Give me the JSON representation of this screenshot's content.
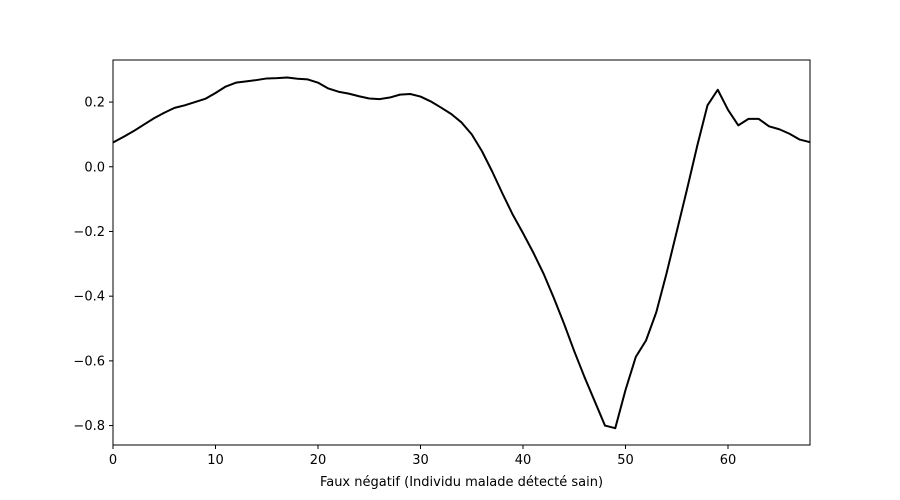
{
  "chart_data": {
    "type": "line",
    "title": "",
    "xlabel": "Faux négatif (Individu malade détecté sain)",
    "ylabel": "",
    "xlim": [
      0,
      68
    ],
    "ylim": [
      -0.86,
      0.33
    ],
    "xticks": [
      0,
      10,
      20,
      30,
      40,
      50,
      60
    ],
    "xtick_labels": [
      "0",
      "10",
      "20",
      "30",
      "40",
      "50",
      "60"
    ],
    "yticks": [
      0.2,
      0.0,
      -0.2,
      -0.4,
      -0.6,
      -0.8
    ],
    "ytick_labels": [
      "0.2",
      "0.0",
      "−0.2",
      "−0.4",
      "−0.6",
      "−0.8"
    ],
    "grid": false,
    "line_color": "#000000",
    "series": [
      {
        "x": [
          0,
          1,
          2,
          3,
          4,
          5,
          6,
          7,
          8,
          9,
          10,
          11,
          12,
          13,
          14,
          15,
          16,
          17,
          18,
          19,
          20,
          21,
          22,
          23,
          24,
          25,
          26,
          27,
          28,
          29,
          30,
          31,
          32,
          33,
          34,
          35,
          36,
          37,
          38,
          39,
          40,
          41,
          42,
          43,
          44,
          45,
          46,
          47,
          48,
          49,
          50,
          51,
          52,
          53,
          54,
          55,
          56,
          57,
          58,
          59,
          60,
          61,
          62,
          63,
          64,
          65,
          66,
          67,
          68
        ],
        "values": [
          0.075,
          0.092,
          0.11,
          0.13,
          0.15,
          0.167,
          0.182,
          0.19,
          0.2,
          0.21,
          0.228,
          0.248,
          0.26,
          0.264,
          0.268,
          0.273,
          0.274,
          0.276,
          0.272,
          0.27,
          0.26,
          0.242,
          0.232,
          0.226,
          0.218,
          0.211,
          0.209,
          0.214,
          0.223,
          0.225,
          0.217,
          0.202,
          0.183,
          0.163,
          0.137,
          0.1,
          0.048,
          -0.015,
          -0.083,
          -0.148,
          -0.205,
          -0.265,
          -0.33,
          -0.405,
          -0.485,
          -0.57,
          -0.65,
          -0.725,
          -0.8,
          -0.808,
          -0.69,
          -0.588,
          -0.537,
          -0.45,
          -0.33,
          -0.2,
          -0.07,
          0.065,
          0.19,
          0.238,
          0.176,
          0.128,
          0.148,
          0.148,
          0.125,
          0.116,
          0.102,
          0.084,
          0.076
        ]
      }
    ]
  }
}
